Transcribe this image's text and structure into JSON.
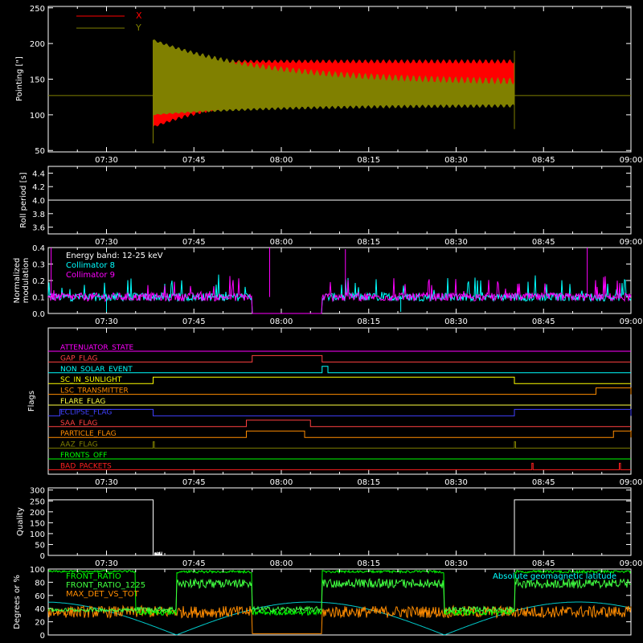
{
  "chart_data": [
    {
      "type": "line",
      "ylabel": "Pointing [\"]",
      "ylim": [
        48,
        252
      ],
      "yticks": [
        50,
        100,
        150,
        200,
        250
      ],
      "xticks": [
        "07:30",
        "07:45",
        "08:00",
        "08:15",
        "08:30",
        "08:45",
        "09:00"
      ],
      "xlim_minutes": [
        440,
        540
      ],
      "legend": [
        "X",
        "Y"
      ],
      "legend_position": "top-left",
      "series": [
        {
          "name": "X",
          "color": "#ff0000",
          "baseline": 127,
          "active_start": "07:38",
          "active_end": "08:40",
          "start_range": [
            83,
            175
          ],
          "end_range": [
            143,
            175
          ]
        },
        {
          "name": "Y",
          "color": "#808000",
          "baseline": 127,
          "active_start": "07:38",
          "active_end": "08:40",
          "start_range": [
            100,
            205
          ],
          "end_range": [
            113,
            145
          ]
        }
      ]
    },
    {
      "type": "line",
      "ylabel": "Roll period [s]",
      "ylim": [
        3.5,
        4.5
      ],
      "yticks": [
        "3.6",
        "3.8",
        "4.0",
        "4.2",
        "4.4"
      ],
      "xticks": [
        "07:30",
        "07:45",
        "08:00",
        "08:15",
        "08:30",
        "08:45",
        "09:00"
      ],
      "series": [
        {
          "name": "",
          "color": "#ffffff",
          "value": 4.0
        }
      ]
    },
    {
      "type": "line",
      "ylabel_lines": [
        "Normalized",
        "modulation"
      ],
      "ylim": [
        0.0,
        0.4
      ],
      "yticks": [
        "0.0",
        "0.1",
        "0.2",
        "0.3",
        "0.4"
      ],
      "xticks": [
        "07:30",
        "07:45",
        "08:00",
        "08:15",
        "08:30",
        "08:45",
        "09:00"
      ],
      "annotation": "Energy band: 12-25 keV",
      "series": [
        {
          "name": "Collimator 8",
          "color": "#00ffff",
          "typical": 0.1
        },
        {
          "name": "Collimator 9",
          "color": "#ff00ff",
          "typical": 0.1
        }
      ],
      "gap": [
        "07:55",
        "08:07"
      ]
    },
    {
      "type": "line",
      "ylabel": "Flags",
      "xticks": [
        "07:30",
        "07:45",
        "08:00",
        "08:15",
        "08:30",
        "08:45",
        "09:00"
      ],
      "flags": [
        {
          "name": "ATTENUATOR_STATE",
          "color": "#ff00ff",
          "on": []
        },
        {
          "name": "GAP_FLAG",
          "color": "#ff4040",
          "on": [
            [
              "07:55",
              "08:07"
            ]
          ]
        },
        {
          "name": "NON_SOLAR_EVENT",
          "color": "#00ffff",
          "on": [
            [
              "08:07",
              "08:08"
            ]
          ]
        },
        {
          "name": "SC_IN_SUNLIGHT",
          "color": "#ffff00",
          "on": [
            [
              "07:38",
              "08:40"
            ]
          ]
        },
        {
          "name": "LSC_TRANSMITTER",
          "color": "#ff8c00",
          "on": [
            [
              "08:54",
              "09:00"
            ]
          ]
        },
        {
          "name": "FLARE_FLAG",
          "color": "#ffff40",
          "on": []
        },
        {
          "name": "ECLIPSE_FLAG",
          "color": "#4040ff",
          "on": [
            [
              "07:22",
              "07:38"
            ],
            [
              "08:40",
              "09:00"
            ]
          ]
        },
        {
          "name": "SAA_FLAG",
          "color": "#ff4040",
          "on": [
            [
              "07:54",
              "08:05"
            ]
          ]
        },
        {
          "name": "PARTICLE_FLAG",
          "color": "#ff8c00",
          "on": [
            [
              "07:54",
              "08:04"
            ],
            [
              "08:57",
              "09:00"
            ]
          ]
        },
        {
          "name": "AAZ_FLAG",
          "color": "#808000",
          "on": [
            [
              "07:38",
              "07:38"
            ],
            [
              "08:40",
              "08:40"
            ]
          ]
        },
        {
          "name": "FRONTS_OFF",
          "color": "#00ff00",
          "on": []
        },
        {
          "name": "BAD_PACKETS",
          "color": "#ff2020",
          "on": [
            [
              "08:43",
              "08:43"
            ],
            [
              "08:58",
              "08:58"
            ]
          ]
        }
      ]
    },
    {
      "type": "line",
      "ylabel": "Quality",
      "ylim": [
        0,
        310
      ],
      "yticks": [
        "0",
        "50",
        "100",
        "150",
        "200",
        "250",
        "300"
      ],
      "xticks": [
        "07:30",
        "07:45",
        "08:00",
        "08:15",
        "08:30",
        "08:45",
        "09:00"
      ],
      "series": [
        {
          "name": "",
          "color": "#ffffff",
          "high": 255,
          "low_start": "07:38",
          "low_end": "08:40"
        }
      ]
    },
    {
      "type": "line",
      "ylabel": "Degrees or %",
      "ylim": [
        0,
        100
      ],
      "yticks": [
        "0",
        "20",
        "40",
        "60",
        "80",
        "100"
      ],
      "xticks": [
        "07:30",
        "07:45",
        "08:00",
        "08:15",
        "08:30",
        "08:45",
        "09:00"
      ],
      "legend": [
        "FRONT_RATIO",
        "FRONT_RATIO_1225",
        "MAX_DET_VS_TOT"
      ],
      "annotation": "Absolute geomagnetic latitude",
      "series": [
        {
          "name": "FRONT_RATIO",
          "color": "#00ff00",
          "high": 98,
          "low": 30
        },
        {
          "name": "FRONT_RATIO_1225",
          "color": "#40ff40",
          "high": 85,
          "low": 35
        },
        {
          "name": "MAX_DET_VS_TOT",
          "color": "#ff8c00",
          "typical": 35
        },
        {
          "name": "Absolute geomagnetic latitude",
          "color": "#00c8c8",
          "max": 50,
          "min": 0
        }
      ]
    }
  ]
}
